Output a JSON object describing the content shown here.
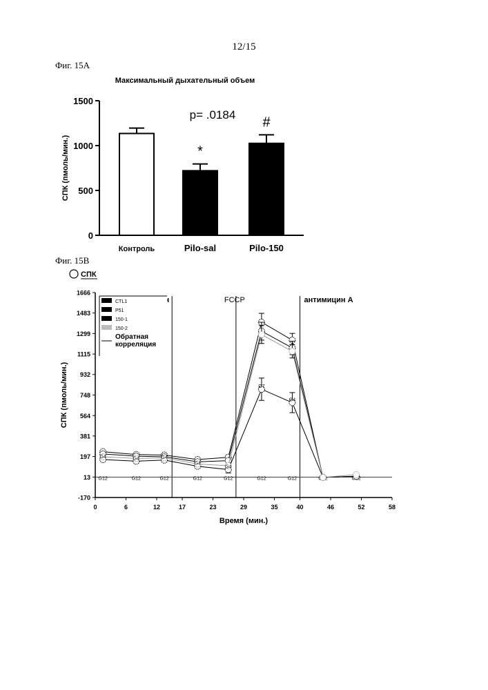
{
  "page_number": "12/15",
  "figure_a_label": "Фиг. 15А",
  "figure_b_label": "Фиг. 15В",
  "chart_data": [
    {
      "type": "bar",
      "title": "Максимальный дыхательный объем",
      "ylabel": "СПК (пмоль/мин.)",
      "ylim": [
        0,
        1500
      ],
      "yticks": [
        "0",
        "500",
        "1000",
        "1500"
      ],
      "categories": [
        "Контроль",
        "Pilo-sal",
        "Pilo-150"
      ],
      "values": [
        1135,
        720,
        1025
      ],
      "errors": [
        60,
        75,
        95
      ],
      "fills": [
        "#ffffff",
        "#000000",
        "#000000"
      ],
      "markers": [
        "",
        "*",
        "#"
      ],
      "p_text": "p= .0184",
      "grid": false
    },
    {
      "type": "line",
      "header_label": "СПК",
      "ylabel": "СПК (пмоль/мин.)",
      "xlabel": "Время (мин.)",
      "xlim": [
        0,
        58
      ],
      "ylim": [
        -170,
        1666
      ],
      "xticks": [
        "0",
        "6",
        "12",
        "17",
        "23",
        "29",
        "35",
        "40",
        "46",
        "52",
        "58"
      ],
      "yticks": [
        "1666",
        "1483",
        "1299",
        "1115",
        "932",
        "748",
        "564",
        "381",
        "197",
        "13",
        "-170"
      ],
      "legend": [
        "CTL1",
        "P51",
        "150-1",
        "150-2",
        "Обратная корреляция"
      ],
      "legend_position": "top-left",
      "injections": [
        {
          "x": 15,
          "label": "Олигомицин"
        },
        {
          "x": 27.5,
          "label": "FCCP"
        },
        {
          "x": 40,
          "label": "антимицин А"
        }
      ],
      "x": [
        1.5,
        8,
        13.5,
        20,
        26,
        32.5,
        38.5,
        44.5,
        51
      ],
      "series": [
        {
          "name": "CTL1",
          "values": [
            240,
            215,
            210,
            170,
            190,
            1400,
            1240,
            10,
            20
          ]
        },
        {
          "name": "P51",
          "values": [
            220,
            200,
            195,
            150,
            160,
            1320,
            1170,
            10,
            20
          ]
        },
        {
          "name": "150-1",
          "values": [
            170,
            155,
            165,
            110,
            80,
            800,
            680,
            10,
            20
          ]
        },
        {
          "name": "150-2",
          "values": [
            195,
            180,
            185,
            130,
            115,
            1290,
            1140,
            10,
            35
          ]
        }
      ],
      "errors": [
        [
          15,
          15,
          15,
          15,
          15,
          80,
          60,
          10,
          10
        ],
        [
          15,
          15,
          15,
          15,
          15,
          80,
          60,
          10,
          10
        ],
        [
          15,
          15,
          15,
          15,
          30,
          100,
          90,
          10,
          10
        ],
        [
          15,
          15,
          15,
          15,
          15,
          80,
          60,
          10,
          10
        ]
      ],
      "baseline_value": 13,
      "baseline_markers": [
        "G12",
        "G12",
        "G12",
        "G12",
        "G12",
        "G12",
        "G12",
        "G12",
        "G12"
      ],
      "point_markers": [
        "G4",
        "G4",
        "G4",
        "G4",
        "G4",
        "G7",
        "G4",
        "",
        ""
      ],
      "grid": false
    }
  ]
}
